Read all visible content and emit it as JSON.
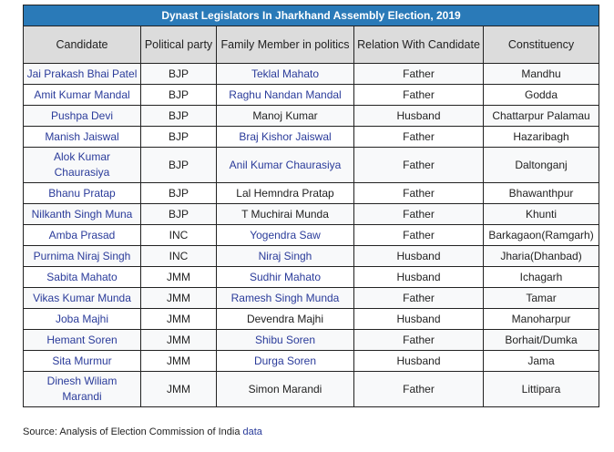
{
  "title": "Dynast Legislators In Jharkhand Assembly Election, 2019",
  "headers": [
    "Candidate",
    "Political party",
    "Family Member in politics",
    "Relation With Candidate",
    "Constituency"
  ],
  "rows": [
    {
      "candidate": "Jai Prakash Bhai Patel",
      "party": "BJP",
      "family": "Teklal Mahato",
      "family_link": true,
      "relation": "Father",
      "constituency": "Mandhu"
    },
    {
      "candidate": "Amit Kumar Mandal",
      "party": "BJP",
      "family": "Raghu Nandan Mandal",
      "family_link": true,
      "relation": "Father",
      "constituency": "Godda"
    },
    {
      "candidate": "Pushpa Devi",
      "party": "BJP",
      "family": "Manoj Kumar",
      "family_link": false,
      "relation": "Husband",
      "constituency": "Chattarpur Palamau"
    },
    {
      "candidate": "Manish Jaiswal",
      "party": "BJP",
      "family": "Braj Kishor Jaiswal",
      "family_link": true,
      "relation": "Father",
      "constituency": "Hazaribagh"
    },
    {
      "candidate": "Alok Kumar Chaurasiya",
      "party": "BJP",
      "family": "Anil Kumar Chaurasiya",
      "family_link": true,
      "relation": "Father",
      "constituency": "Daltonganj"
    },
    {
      "candidate": "Bhanu Pratap",
      "party": "BJP",
      "family": "Lal Hemndra Pratap",
      "family_link": false,
      "relation": "Father",
      "constituency": "Bhawanthpur"
    },
    {
      "candidate": "Nilkanth Singh Muna",
      "party": "BJP",
      "family": "T Muchirai Munda",
      "family_link": false,
      "relation": "Father",
      "constituency": "Khunti"
    },
    {
      "candidate": "Amba Prasad",
      "party": "INC",
      "family": "Yogendra Saw",
      "family_link": true,
      "relation": "Father",
      "constituency": "Barkagaon(Ramgarh)"
    },
    {
      "candidate": "Purnima Niraj Singh",
      "party": "INC",
      "family": "Niraj Singh",
      "family_link": true,
      "relation": "Husband",
      "constituency": "Jharia(Dhanbad)"
    },
    {
      "candidate": "Sabita Mahato",
      "party": "JMM",
      "family": "Sudhir Mahato",
      "family_link": true,
      "relation": "Husband",
      "constituency": "Ichagarh"
    },
    {
      "candidate": "Vikas Kumar Munda",
      "party": "JMM",
      "family": "Ramesh Singh Munda",
      "family_link": true,
      "relation": "Father",
      "constituency": "Tamar"
    },
    {
      "candidate": "Joba Majhi",
      "party": "JMM",
      "family": "Devendra Majhi",
      "family_link": false,
      "relation": "Husband",
      "constituency": "Manoharpur"
    },
    {
      "candidate": "Hemant Soren",
      "party": "JMM",
      "family": "Shibu Soren",
      "family_link": true,
      "relation": "Father",
      "constituency": "Borhait/Dumka"
    },
    {
      "candidate": "Sita Murmur",
      "party": "JMM",
      "family": "Durga Soren",
      "family_link": true,
      "relation": "Husband",
      "constituency": "Jama"
    },
    {
      "candidate": "Dinesh Wiliam Marandi",
      "party": "JMM",
      "family": "Simon Marandi",
      "family_link": false,
      "relation": "Father",
      "constituency": "Littipara"
    }
  ],
  "source": {
    "text": "Source: Analysis of Election Commission of India ",
    "link": "data"
  },
  "colors": {
    "title_bg": "#2a7ab8",
    "header_bg": "#dcdcdc",
    "link": "#2a3b9a"
  }
}
